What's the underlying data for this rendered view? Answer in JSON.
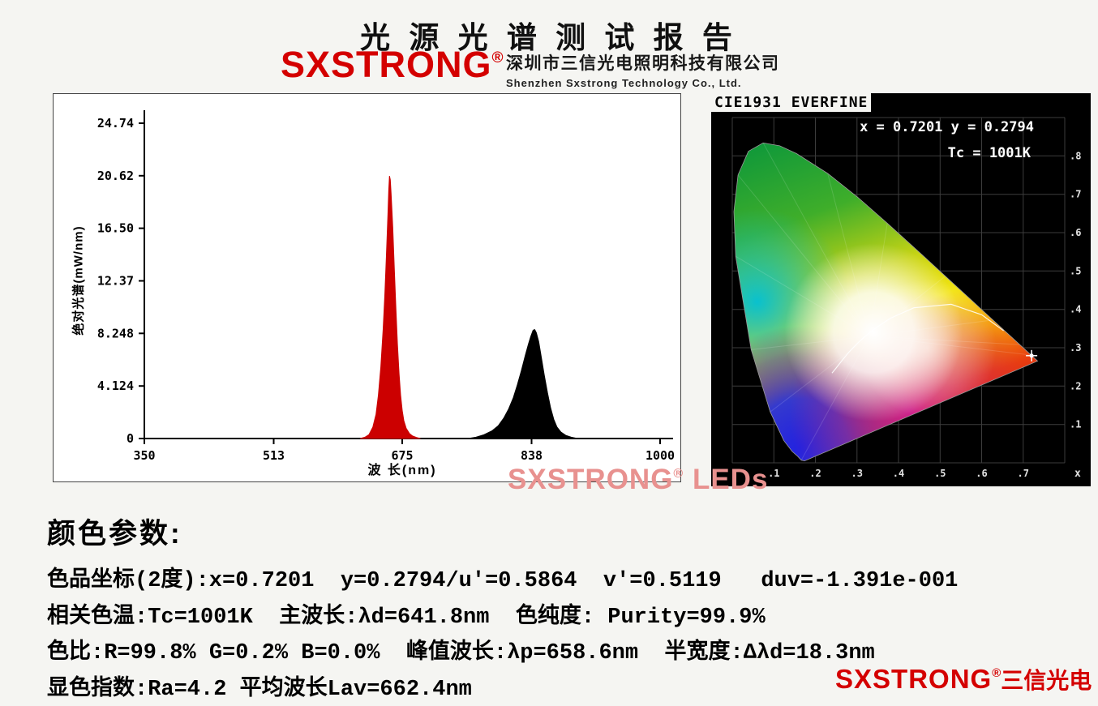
{
  "header": {
    "title": "光 源 光 谱 测 试 报 告",
    "brand": "SXSTRONG",
    "reg_mark": "®",
    "company_cn": "深圳市三信光电照明科技有限公司",
    "company_en": "Shenzhen Sxstrong Technology Co., Ltd."
  },
  "colors": {
    "brand_red": "#d40000",
    "watermark_pink": "#e8918f",
    "spectrum_red": "#cc0000",
    "spectrum_black": "#000000"
  },
  "watermark": {
    "brand": "SXSTRONG",
    "reg": "®",
    "suffix": " LEDs"
  },
  "params": {
    "heading": "颜色参数:",
    "lines": [
      "色品坐标(2度):x=0.7201  y=0.2794/u'=0.5864  v'=0.5119   duv=-1.391e-001",
      "相关色温:Tc=1001K  主波长:λd=641.8nm  色纯度: Purity=99.9%",
      "色比:R=99.8% G=0.2% B=0.0%  峰值波长:λp=658.6nm  半宽度:Δλd=18.3nm",
      "显色指数:Ra=4.2 平均波长Lav=662.4nm"
    ]
  },
  "footer": {
    "brand": "SXSTRONG",
    "reg": "®",
    "suffix": "三信光电"
  },
  "chart_data": [
    {
      "type": "area",
      "title": "绝对光谱",
      "xlabel": "波 长(nm)",
      "ylabel": "绝对光谱(mW/nm)",
      "xlim": [
        350,
        1000
      ],
      "ylim": [
        0,
        24.74
      ],
      "grid": false,
      "x_ticks": [
        350,
        513,
        675,
        838,
        1000
      ],
      "x_tick_labels": [
        "350",
        "513",
        "675",
        "838",
        "1000"
      ],
      "y_ticks": [
        0,
        4.124,
        8.248,
        12.37,
        16.5,
        20.62,
        24.74
      ],
      "y_tick_labels": [
        "0",
        "4.124",
        "8.248",
        "12.37",
        "16.50",
        "20.62",
        "24.74"
      ],
      "series": [
        {
          "name": "red-emission-peak",
          "color": "#cc0000",
          "peak_nm": 658.6,
          "fwhm_nm": 18.3,
          "points": [
            [
              622,
              0
            ],
            [
              628,
              0.1
            ],
            [
              633,
              0.3
            ],
            [
              638,
              0.9
            ],
            [
              642,
              1.9
            ],
            [
              645,
              3.4
            ],
            [
              648,
              5.6
            ],
            [
              651,
              8.6
            ],
            [
              653,
              11.2
            ],
            [
              655,
              14.2
            ],
            [
              657,
              17.6
            ],
            [
              658,
              19.5
            ],
            [
              659,
              20.6
            ],
            [
              660,
              20.3
            ],
            [
              661,
              19.2
            ],
            [
              663,
              16.6
            ],
            [
              665,
              13.4
            ],
            [
              667,
              10.2
            ],
            [
              669,
              7.4
            ],
            [
              671,
              5.1
            ],
            [
              673,
              3.4
            ],
            [
              675,
              2.2
            ],
            [
              677,
              1.4
            ],
            [
              680,
              0.8
            ],
            [
              684,
              0.4
            ],
            [
              688,
              0.2
            ],
            [
              693,
              0.08
            ],
            [
              698,
              0
            ]
          ]
        },
        {
          "name": "nir-emission-peak",
          "color": "#000000",
          "points": [
            [
              758,
              0
            ],
            [
              768,
              0.1
            ],
            [
              778,
              0.3
            ],
            [
              788,
              0.6
            ],
            [
              796,
              1.0
            ],
            [
              803,
              1.6
            ],
            [
              809,
              2.3
            ],
            [
              815,
              3.2
            ],
            [
              820,
              4.2
            ],
            [
              825,
              5.3
            ],
            [
              830,
              6.5
            ],
            [
              834,
              7.4
            ],
            [
              837,
              8.0
            ],
            [
              840,
              8.5
            ],
            [
              842,
              8.55
            ],
            [
              844,
              8.3
            ],
            [
              847,
              7.6
            ],
            [
              850,
              6.5
            ],
            [
              854,
              5.0
            ],
            [
              858,
              3.6
            ],
            [
              862,
              2.4
            ],
            [
              866,
              1.5
            ],
            [
              870,
              0.9
            ],
            [
              875,
              0.5
            ],
            [
              881,
              0.25
            ],
            [
              888,
              0.1
            ],
            [
              896,
              0
            ]
          ]
        }
      ]
    },
    {
      "type": "scatter",
      "title": "CIE1931 EVERFINE",
      "xlabel": "x",
      "ylabel": "y",
      "xlim": [
        0,
        0.8
      ],
      "ylim": [
        0,
        0.9
      ],
      "x_tick_labels": [
        ".1",
        ".2",
        ".3",
        ".4",
        ".5",
        ".6",
        ".7"
      ],
      "y_tick_labels": [
        ".8",
        ".7",
        ".6",
        ".5",
        ".4",
        ".3",
        ".2",
        ".1"
      ],
      "points": [
        {
          "x": 0.7201,
          "y": 0.2794
        }
      ],
      "annotations": [
        "x = 0.7201 y = 0.2794",
        "Tc = 1001K"
      ]
    }
  ]
}
